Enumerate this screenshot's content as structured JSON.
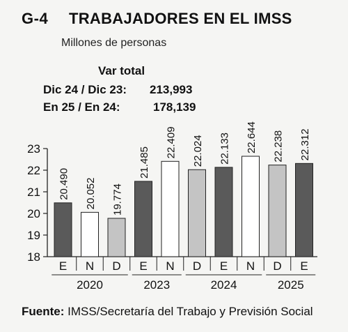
{
  "header": {
    "code": "G-4",
    "title": "TRABAJADORES EN EL IMSS",
    "subtitle": "Millones de personas"
  },
  "var_total": {
    "title": "Var total",
    "rows": [
      {
        "label": "Dic 24 / Dic 23:",
        "value": "213,993"
      },
      {
        "label": "En 25 / En 24:",
        "value": "178,139"
      }
    ]
  },
  "source": {
    "label": "Fuente:",
    "text": "IMSS/Secretaría del Trabajo y Previsión Social"
  },
  "colors": {
    "E": "#5a5a5a",
    "N": "#ffffff",
    "D": "#c4c4c4",
    "stroke": "#222222"
  },
  "chart_data": {
    "type": "bar",
    "ylim": [
      18,
      23
    ],
    "yticks": [
      18,
      19,
      20,
      21,
      22,
      23
    ],
    "categories": [
      "E",
      "N",
      "D",
      "E",
      "N",
      "D",
      "E",
      "N",
      "D",
      "E"
    ],
    "values": [
      20.49,
      20.052,
      19.774,
      21.485,
      22.409,
      22.024,
      22.133,
      22.644,
      22.238,
      22.312
    ],
    "value_labels": [
      "20.490",
      "20.052",
      "19.774",
      "21.485",
      "22.409",
      "22.024",
      "22.133",
      "22.644",
      "22.238",
      "22.312"
    ],
    "years": [
      {
        "label": "2020",
        "bars": [
          0,
          1,
          2
        ]
      },
      {
        "label": "2023",
        "bars": [
          3,
          4
        ]
      },
      {
        "label": "2024",
        "bars": [
          5,
          6,
          7
        ]
      },
      {
        "label": "2025",
        "bars": [
          8,
          9
        ]
      }
    ],
    "grid": false
  }
}
